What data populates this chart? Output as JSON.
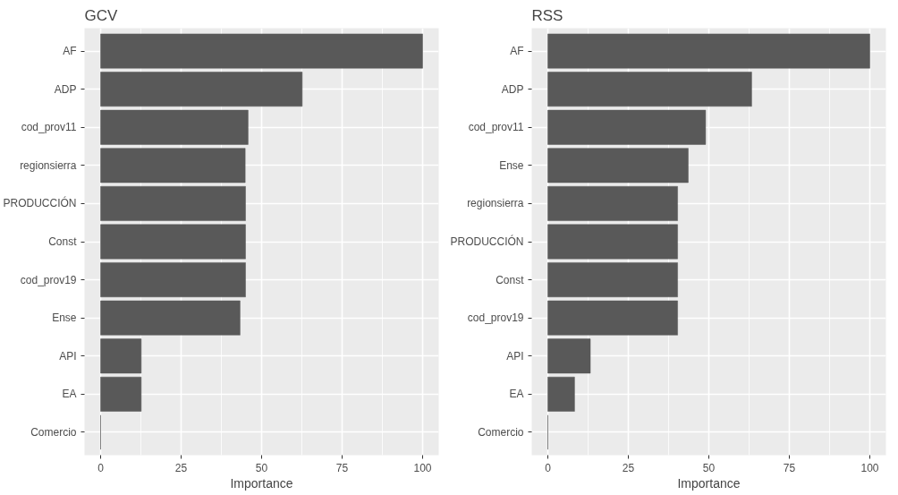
{
  "chart_data": [
    {
      "type": "bar",
      "orientation": "horizontal",
      "title": "GCV",
      "xlabel": "Importance",
      "categories": [
        "AF",
        "ADP",
        "cod_prov11",
        "regionsierra",
        "PRODUCCIÓN",
        "Const",
        "cod_prov19",
        "Ense",
        "API",
        "EA",
        "Comercio"
      ],
      "values": [
        100,
        62.6,
        45.8,
        44.9,
        45,
        45,
        45,
        43.3,
        12.6,
        12.6,
        0
      ],
      "color": "#595959",
      "xlim": [
        -5,
        105
      ],
      "xticks": [
        0,
        25,
        50,
        75,
        100
      ],
      "grid": true
    },
    {
      "type": "bar",
      "orientation": "horizontal",
      "title": "RSS",
      "xlabel": "Importance",
      "categories": [
        "AF",
        "ADP",
        "cod_prov11",
        "Ense",
        "regionsierra",
        "PRODUCCIÓN",
        "Const",
        "cod_prov19",
        "API",
        "EA",
        "Comercio"
      ],
      "values": [
        100,
        63.3,
        49,
        43.6,
        40.3,
        40.3,
        40.3,
        40.3,
        13.2,
        8.3,
        0
      ],
      "color": "#595959",
      "xlim": [
        -5,
        105
      ],
      "xticks": [
        0,
        25,
        50,
        75,
        100
      ],
      "grid": true
    }
  ]
}
